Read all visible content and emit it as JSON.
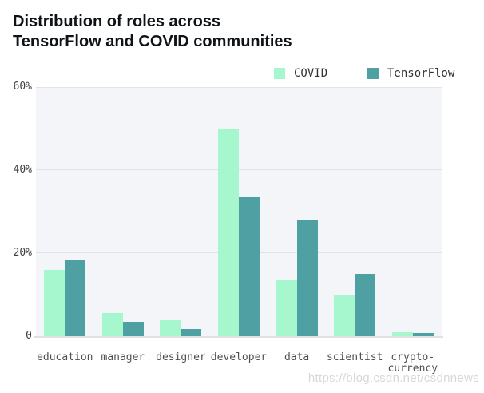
{
  "header": {
    "title_line1": "Distribution of roles across",
    "title_line2": "TensorFlow and COVID communities"
  },
  "watermark": {
    "text": "https://blog.csdn.net/csdnnews"
  },
  "colors": {
    "covid": "#a6f6ce",
    "tensorflow": "#4fa0a2",
    "plot_background": "#f4f5f9",
    "gridline": "#e2e3e7",
    "axis_line": "#e0e1e5",
    "title_text": "#0e1317"
  },
  "chart_data": {
    "type": "bar",
    "title": "Distribution of roles across TensorFlow and COVID communities",
    "categories": [
      "education",
      "manager",
      "designer",
      "developer",
      "data",
      "scientist",
      "crypto-currency"
    ],
    "xtick_labels": [
      "education",
      "manager",
      "designer",
      "developer",
      "data",
      "scientist",
      "crypto-\ncurrency"
    ],
    "series": [
      {
        "name": "COVID",
        "color": "#a6f6ce",
        "values": [
          16,
          5.5,
          4,
          50,
          13.5,
          10,
          1
        ]
      },
      {
        "name": "TensorFlow",
        "color": "#4fa0a2",
        "values": [
          18.5,
          3.5,
          1.7,
          33.5,
          28,
          15,
          0.7
        ]
      }
    ],
    "xlabel": "",
    "ylabel": "",
    "ylim": [
      0,
      60
    ],
    "yticks": [
      {
        "value": 0,
        "label": "0"
      },
      {
        "value": 20,
        "label": "20%"
      },
      {
        "value": 40,
        "label": "40%"
      },
      {
        "value": 60,
        "label": "60%"
      }
    ],
    "grid": true,
    "legend_position": "top-right"
  }
}
